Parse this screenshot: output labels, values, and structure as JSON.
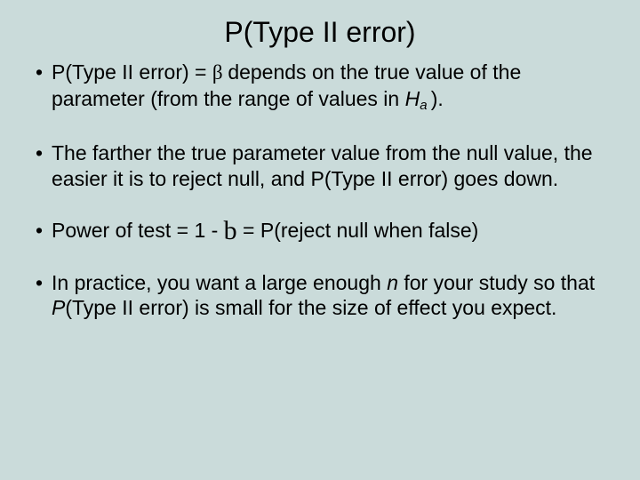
{
  "slide": {
    "title": "P(Type II error)",
    "bullets": [
      {
        "prefix": "P(Type II error) = ",
        "symbol": "β ",
        "mid1": "depends on the true value of the parameter (from the range of values in ",
        "h": "H",
        "hsub": "a ",
        "tail": ")."
      },
      {
        "text": "The farther the true parameter value from the null value, the easier it is to reject null, and P(Type II error) goes down."
      },
      {
        "prefix": "Power of test = 1 - ",
        "symbol": "b",
        "tail": " = P(reject null when false)"
      },
      {
        "prefix": "In practice, you want a large enough ",
        "n": "n",
        "mid": " for your study so that ",
        "p": "P",
        "tail": "(Type II error) is small for the size of effect you expect."
      }
    ],
    "colors": {
      "background": "#cadbda",
      "text": "#000000"
    },
    "typography": {
      "title_fontsize": 32,
      "body_fontsize": 23,
      "font_family": "Arial"
    }
  }
}
